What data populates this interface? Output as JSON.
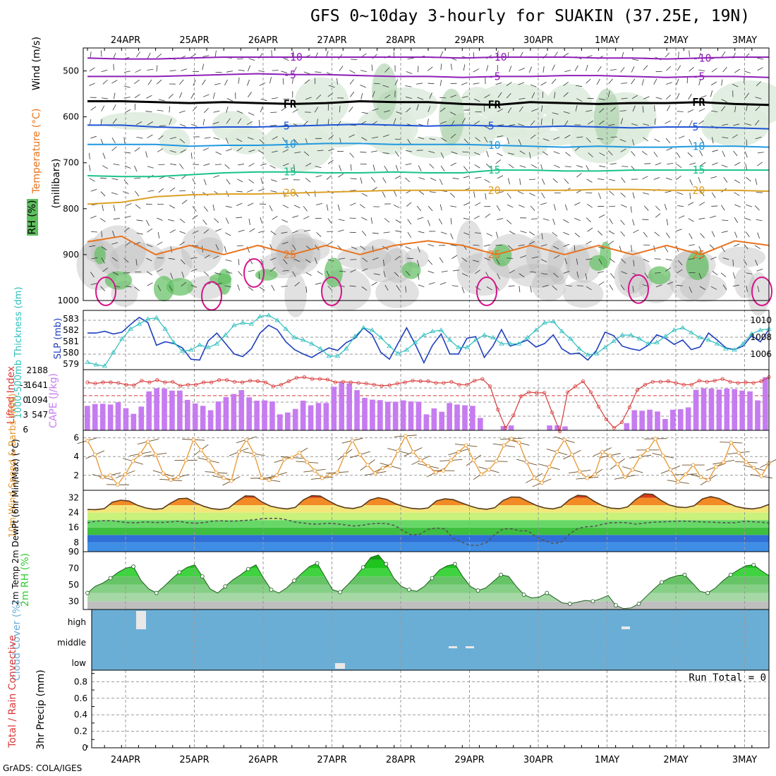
{
  "header": {
    "title": "GFS 0~10day 3-hourly for SUAKIN (37.25E, 19N)"
  },
  "footer": {
    "credit": "GrADS: COLA/IGES"
  },
  "colors": {
    "frame": "#000000",
    "grid": "#9a9a9a",
    "rh_light": "#dcebdc",
    "rh_mid": "#a6cfa6",
    "rh_dark": "#5fbf5f",
    "rh_gray": "#bdbdbd",
    "cloud": "#6aaed6",
    "slp": "#1f3fbf",
    "thickness": "#2fbfbf",
    "lifted": "#d83a3a",
    "cape": "#c67cf0",
    "wind": "#e8962e",
    "barb": "#6b4f2a",
    "dewpt": "#555555",
    "rh2m": "#33cc33"
  },
  "chart_data": {
    "type": "meteogram",
    "time_labels": [
      "24APR",
      "25APR",
      "26APR",
      "27APR",
      "28APR",
      "29APR",
      "30APR",
      "1MAY",
      "2MAY",
      "3MAY"
    ],
    "steps": 80,
    "panels": [
      {
        "id": "upper_air",
        "type": "contour",
        "ylabel": "(millibars)",
        "legend_labels": [
          "Wind (m/s)",
          "Temperature (°C)",
          "RH (%)"
        ],
        "y_ticks": [
          500,
          600,
          700,
          800,
          900,
          1000
        ],
        "ylim": [
          450,
          1000
        ],
        "temperature_isotherms": [
          {
            "label": "-10",
            "pressure": [
              472,
              474,
              474,
              472,
              470,
              470,
              470,
              470,
              470,
              470,
              470,
              472,
              470,
              470,
              470,
              472,
              472,
              474,
              472,
              470,
              470
            ]
          },
          {
            "label": "-5",
            "pressure": [
              512,
              512,
              512,
              510,
              508,
              506,
              508,
              508,
              510,
              512,
              512,
              514,
              512,
              512,
              510,
              510,
              512,
              514,
              512,
              512,
              514
            ]
          },
          {
            "label": "FR",
            "pressure": [
              566,
              566,
              568,
              570,
              568,
              570,
              572,
              570,
              566,
              568,
              568,
              572,
              574,
              568,
              570,
              572,
              570,
              570,
              568,
              572,
              574
            ]
          },
          {
            "label": "5",
            "pressure": [
              618,
              618,
              622,
              624,
              622,
              622,
              620,
              618,
              616,
              618,
              620,
              618,
              620,
              622,
              620,
              622,
              624,
              622,
              622,
              624,
              626
            ]
          },
          {
            "label": "10",
            "pressure": [
              660,
              660,
              660,
              664,
              662,
              662,
              660,
              658,
              658,
              660,
              660,
              660,
              662,
              664,
              666,
              664,
              666,
              666,
              664,
              664,
              666
            ]
          },
          {
            "label": "15",
            "pressure": [
              728,
              730,
              730,
              726,
              722,
              720,
              720,
              722,
              722,
              720,
              722,
              722,
              716,
              716,
              718,
              718,
              716,
              716,
              716,
              716,
              716
            ]
          },
          {
            "label": "20",
            "pressure": [
              790,
              786,
              774,
              770,
              768,
              768,
              766,
              764,
              762,
              760,
              760,
              760,
              760,
              760,
              760,
              758,
              758,
              760,
              760,
              760,
              762
            ]
          },
          {
            "label": "25",
            "pressure": [
              872,
              860,
              900,
              880,
              900,
              880,
              900,
              880,
              900,
              880,
              870,
              880,
              900,
              880,
              900,
              880,
              900,
              880,
              900,
              870,
              880
            ]
          }
        ],
        "rh_contours": [
          10,
          30,
          50
        ]
      },
      {
        "id": "slp_thickness",
        "type": "line",
        "ylabel": "SLP (mb)",
        "ylabel2": "1000-500mb Thickness (dm)",
        "left_ticks": [
          "583",
          "582",
          "581",
          "580",
          "579"
        ],
        "right_ticks": [
          "1010",
          "1008",
          "1006"
        ],
        "slp_values": [
          1008.6,
          1008.6,
          1008.8,
          1008.5,
          1008.7,
          1009.6,
          1010.4,
          1009.8,
          1007.2,
          1007.6,
          1007.4,
          1006.9,
          1005.6,
          1005.5,
          1007.7,
          1008.6,
          1007.4,
          1006.2,
          1005.9,
          1006.8,
          1008.6,
          1009.5,
          1009.0,
          1007.6,
          1006.7,
          1006.2,
          1005.8,
          1006.4,
          1006.9,
          1006.6,
          1007.5,
          1008.0,
          1009.2,
          1008.4,
          1006.4,
          1005.6,
          1007.4,
          1009.2,
          1007.3,
          1005.2,
          1007.2,
          1008.5,
          1006.2,
          1006.2,
          1008.0,
          1008.2,
          1005.8,
          1007.1,
          1009.0,
          1007.1,
          1007.4,
          1007.8,
          1007.0,
          1007.4,
          1008.4,
          1006.8,
          1006.2,
          1006.3,
          1005.5,
          1006.6,
          1008.7,
          1008.3,
          1007.1,
          1006.8,
          1006.6,
          1007.2,
          1008.4,
          1008.0,
          1007.3,
          1007.8,
          1006.7,
          1007.0,
          1008.6,
          1007.8,
          1006.9,
          1006.7,
          1007.1,
          1008.3,
          1007.6,
          1009.0
        ],
        "thickness_values": [
          579.4,
          579.2,
          579.1,
          580.2,
          581.3,
          582.1,
          582.5,
          582.9,
          583.0,
          582.1,
          581.0,
          580.3,
          580.4,
          580.8,
          580.6,
          580.9,
          581.6,
          582.4,
          582.6,
          582.5,
          583.1,
          583.2,
          582.8,
          582.1,
          581.4,
          581.2,
          580.9,
          580.5,
          579.9,
          579.9,
          580.5,
          581.5,
          582.2,
          582.0,
          581.4,
          580.7,
          580.1,
          580.4,
          581.0,
          581.6,
          581.9,
          582.0,
          581.2,
          580.6,
          580.6,
          581.2,
          581.6,
          581.4,
          580.9,
          580.9,
          580.9,
          581.4,
          582.0,
          582.6,
          582.7,
          581.9,
          581.3,
          580.5,
          580.0,
          580.1,
          580.6,
          581.1,
          581.6,
          581.6,
          581.3,
          580.9,
          581.0,
          581.5,
          582.0,
          582.2,
          581.8,
          581.4,
          581.2,
          580.9,
          580.5,
          580.4,
          580.9,
          581.7,
          582.0,
          582.1
        ]
      },
      {
        "id": "cape_li",
        "type": "bar_line",
        "ylabel": "CAPE (J/kg)",
        "ylabel2": "Lifted Index",
        "left_ticks": [
          "-3",
          "0",
          "3",
          "6"
        ],
        "right_ticks": [
          "2188",
          "1641",
          "1094",
          "547"
        ],
        "cape_values": [
          950,
          1020,
          1030,
          1000,
          1090,
          860,
          640,
          920,
          1510,
          1630,
          1620,
          1540,
          1540,
          1180,
          1040,
          950,
          780,
          1120,
          1290,
          1410,
          1560,
          1280,
          1150,
          1160,
          1120,
          620,
          690,
          830,
          1150,
          970,
          1060,
          1060,
          1690,
          1850,
          1820,
          1560,
          1260,
          1190,
          1170,
          1110,
          1110,
          1160,
          1120,
          1110,
          620,
          850,
          720,
          1060,
          1000,
          970,
          950,
          480,
          0,
          0,
          170,
          190,
          0,
          0,
          0,
          0,
          190,
          190,
          150,
          0,
          0,
          0,
          0,
          0,
          0,
          0,
          280,
          780,
          760,
          800,
          730,
          440,
          800,
          820,
          890,
          1570,
          1630,
          1620,
          1580,
          1620,
          1600,
          1540,
          1510,
          1160,
          2060
        ],
        "li_values": [
          -2.3,
          -2.1,
          -2.3,
          -2.3,
          -2.2,
          -1.9,
          -1.8,
          -2.6,
          -2.3,
          -2.7,
          -2.3,
          -2.4,
          -1.7,
          -1.9,
          -1.9,
          -2.3,
          -2.3,
          -2.7,
          -2.7,
          -2.4,
          -2.3,
          -2.6,
          -2.5,
          -2.3,
          -1.6,
          -1.9,
          -2.5,
          -3.1,
          -3.2,
          -2.9,
          -2.9,
          -2.8,
          -2.3,
          -2.4,
          -2.3,
          -2.2,
          -2.1,
          -1.9,
          -1.7,
          -1.8,
          -2.1,
          -2.3,
          -2.6,
          -2.5,
          -2.5,
          -2.2,
          -2.2,
          -2.4,
          -1.9,
          -1.9,
          -2.6,
          -2.9,
          -1.6,
          2.4,
          5.6,
          3.4,
          0.1,
          -0.6,
          -0.5,
          -0.5,
          2.9,
          6.2,
          -0.6,
          -1.6,
          -2.5,
          -0.6,
          1.9,
          4.1,
          5.6,
          4.6,
          2.0,
          -1.0,
          -1.9,
          -2.4,
          -2.4,
          -2.5,
          -2.2,
          -1.9,
          -1.9,
          -2.6,
          -2.4,
          -2.6,
          -2.9,
          -2.4,
          -2.2,
          -2.3,
          -2.2,
          -2.5,
          -3.2
        ]
      },
      {
        "id": "wind10m",
        "type": "line",
        "ylabel": "10m Wind Speed & Barbs (m/s)",
        "y_ticks": [
          "6",
          "4",
          "2"
        ],
        "speed_values": [
          5.7,
          4.2,
          1.8,
          2.0,
          1.0,
          2.1,
          3.5,
          4.3,
          5.6,
          4.2,
          2.2,
          1.5,
          1.8,
          3.6,
          5.8,
          4.7,
          3.6,
          2.3,
          1.7,
          1.4,
          4.5,
          5.8,
          4.3,
          1.7,
          1.5,
          2.0,
          3.7,
          3.9,
          4.4,
          3.4,
          2.5,
          1.7,
          2.0,
          2.3,
          4.2,
          5.7,
          4.2,
          3.1,
          2.2,
          2.8,
          3.0,
          4.6,
          6.2,
          4.5,
          3.6,
          3.0,
          2.3,
          2.5,
          3.6,
          4.5,
          5.2,
          3.6,
          2.1,
          2.6,
          3.5,
          5.2,
          5.9,
          5.5,
          3.4,
          1.7,
          1.2,
          2.9,
          4.5,
          5.8,
          4.2,
          2.4,
          1.7,
          2.1,
          4.5,
          4.1,
          3.2,
          1.8,
          2.6,
          4.0,
          4.7,
          5.9,
          4.1,
          2.6,
          1.3,
          2.1,
          3.1,
          1.8,
          1.5,
          2.9,
          3.4,
          5.5,
          4.4,
          3.4,
          2.8,
          1.9,
          3.3
        ]
      },
      {
        "id": "temp2m",
        "type": "area_line",
        "ylabel": "2m Temp 2m DewPt (6hr Min/Max) (°C)",
        "y_ticks": [
          "32",
          "24",
          "16",
          "8"
        ],
        "temp_values": [
          25.7,
          25.6,
          26.1,
          29.6,
          30.7,
          30.2,
          28.0,
          26.5,
          25.8,
          26.1,
          29.1,
          31.5,
          31.7,
          29.3,
          27.4,
          26.1,
          25.7,
          26.5,
          30.0,
          33.0,
          32.8,
          29.7,
          27.5,
          26.5,
          26.0,
          26.8,
          30.9,
          33.1,
          32.9,
          30.4,
          28.0,
          26.6,
          26.2,
          27.3,
          30.8,
          32.0,
          31.1,
          28.9,
          27.3,
          26.3,
          26.0,
          26.5,
          30.3,
          31.4,
          31.0,
          29.3,
          27.6,
          26.3,
          25.8,
          26.6,
          30.5,
          32.4,
          32.3,
          30.0,
          27.9,
          26.5,
          26.0,
          27.1,
          31.0,
          33.3,
          32.9,
          30.0,
          27.7,
          26.4,
          26.1,
          27.1,
          31.1,
          34.1,
          33.8,
          30.6,
          28.1,
          27.0,
          26.7,
          27.7,
          31.4,
          32.6,
          31.6,
          29.3,
          27.3,
          26.4,
          26.0,
          26.7,
          28.4
        ],
        "dewpt_values": [
          18.5,
          19.4,
          19.7,
          19.6,
          19.0,
          18.6,
          18.6,
          19.0,
          18.7,
          18.7,
          19.0,
          19.3,
          18.6,
          18.3,
          18.6,
          19.4,
          19.6,
          19.4,
          19.5,
          19.8,
          20.1,
          20.7,
          20.9,
          20.9,
          20.1,
          18.9,
          18.4,
          17.8,
          17.9,
          18.2,
          18.0,
          17.4,
          16.8,
          17.1,
          17.9,
          18.2,
          18.1,
          17.0,
          14.2,
          11.9,
          12.4,
          15.0,
          15.8,
          15.2,
          10.2,
          8.2,
          6.4,
          6.4,
          7.8,
          12.2,
          15.2,
          15.3,
          14.2,
          14.2,
          10.9,
          8.9,
          7.4,
          8.1,
          12.5,
          15.4,
          16.4,
          16.6,
          17.8,
          18.5,
          18.7,
          18.5,
          17.8,
          18.4,
          18.8,
          19.0,
          19.2,
          19.4,
          19.4,
          19.2,
          19.0,
          18.9,
          18.7,
          18.5,
          18.6,
          19.3,
          19.1,
          18.9,
          18.4
        ]
      },
      {
        "id": "rh2m",
        "type": "area",
        "ylabel": "2m RH (%)",
        "y_ticks": [
          "90",
          "70",
          "50",
          "30"
        ],
        "rh_values": [
          40,
          48,
          52,
          58,
          65,
          70,
          72,
          55,
          45,
          40,
          48,
          57,
          65,
          71,
          74,
          60,
          45,
          40,
          48,
          56,
          62,
          69,
          74,
          58,
          44,
          40,
          46,
          55,
          64,
          72,
          76,
          60,
          44,
          41,
          50,
          60,
          71,
          83,
          86,
          75,
          58,
          48,
          44,
          42,
          48,
          58,
          68,
          73,
          75,
          60,
          48,
          43,
          46,
          54,
          62,
          60,
          48,
          38,
          34,
          35,
          40,
          34,
          28,
          27,
          29,
          31,
          30,
          33,
          37,
          25,
          21,
          22,
          27,
          36,
          45,
          53,
          58,
          61,
          62,
          52,
          42,
          40,
          46,
          55,
          62,
          68,
          73,
          74,
          67,
          61
        ],
        "ylim": [
          20,
          90
        ]
      },
      {
        "id": "cloud",
        "type": "bar",
        "ylabel": "Cloud Cover (%)",
        "y_ticks": [
          "high",
          "middle",
          "low"
        ]
      },
      {
        "id": "precip",
        "type": "bar",
        "ylabel": "3hr Precip (mm)",
        "ylabel2": "Total / Rain Convective",
        "y_ticks": [
          "0.8",
          "0.6",
          "0.4",
          "0.2",
          "0"
        ],
        "run_total_label": "Run Total = 0",
        "values": []
      }
    ]
  }
}
